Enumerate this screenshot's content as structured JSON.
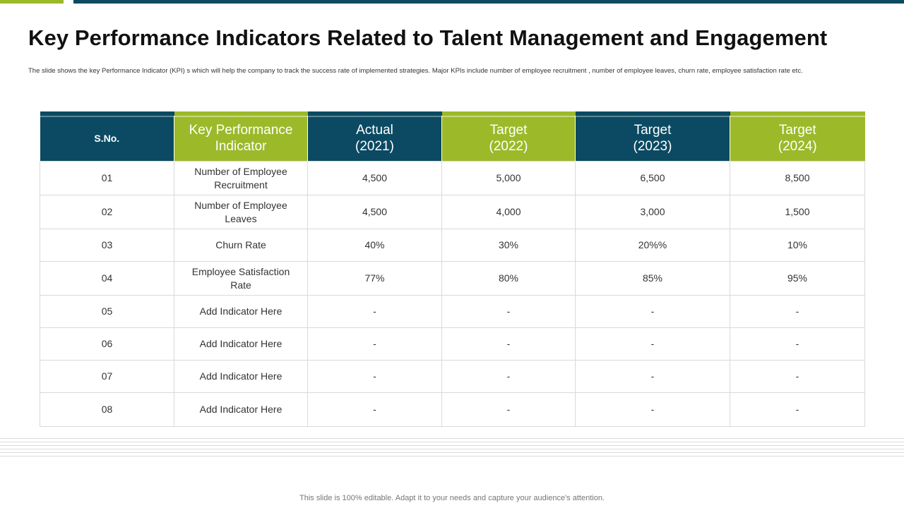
{
  "slide": {
    "title": "Key Performance Indicators Related to Talent Management and Engagement",
    "description": "The slide shows the key Performance Indicator (KPI) s which will help the company to track the success rate of implemented strategies. Major KPIs include number of employee recruitment , number of employee leaves, churn rate, employee satisfaction rate etc.",
    "footer": "This slide is 100% editable. Adapt it to your needs and capture your audience's attention."
  },
  "colors": {
    "navy": "#0b4a62",
    "green": "#9cb92a"
  },
  "table": {
    "headers": [
      {
        "line1": "S.No.",
        "line2": ""
      },
      {
        "line1": "Key Performance",
        "line2": "Indicator"
      },
      {
        "line1": "Actual",
        "line2": "(2021)"
      },
      {
        "line1": "Target",
        "line2": "(2022)"
      },
      {
        "line1": "Target",
        "line2": "(2023)"
      },
      {
        "line1": "Target",
        "line2": "(2024)"
      }
    ],
    "rows": [
      {
        "sno": "01",
        "kpi": "Number of Employee Recruitment",
        "actual_2021": "4,500",
        "target_2022": "5,000",
        "target_2023": "6,500",
        "target_2024": "8,500"
      },
      {
        "sno": "02",
        "kpi": "Number of Employee Leaves",
        "actual_2021": "4,500",
        "target_2022": "4,000",
        "target_2023": "3,000",
        "target_2024": "1,500"
      },
      {
        "sno": "03",
        "kpi": "Churn Rate",
        "actual_2021": "40%",
        "target_2022": "30%",
        "target_2023": "20%%",
        "target_2024": "10%"
      },
      {
        "sno": "04",
        "kpi": "Employee Satisfaction Rate",
        "actual_2021": "77%",
        "target_2022": "80%",
        "target_2023": "85%",
        "target_2024": "95%"
      },
      {
        "sno": "05",
        "kpi": "Add Indicator Here",
        "actual_2021": "-",
        "target_2022": "-",
        "target_2023": "-",
        "target_2024": "-"
      },
      {
        "sno": "06",
        "kpi": "Add Indicator Here",
        "actual_2021": "-",
        "target_2022": "-",
        "target_2023": "-",
        "target_2024": "-"
      },
      {
        "sno": "07",
        "kpi": "Add Indicator Here",
        "actual_2021": "-",
        "target_2022": "-",
        "target_2023": "-",
        "target_2024": "-"
      },
      {
        "sno": "08",
        "kpi": "Add Indicator Here",
        "actual_2021": "-",
        "target_2022": "-",
        "target_2023": "-",
        "target_2024": "-"
      }
    ]
  }
}
